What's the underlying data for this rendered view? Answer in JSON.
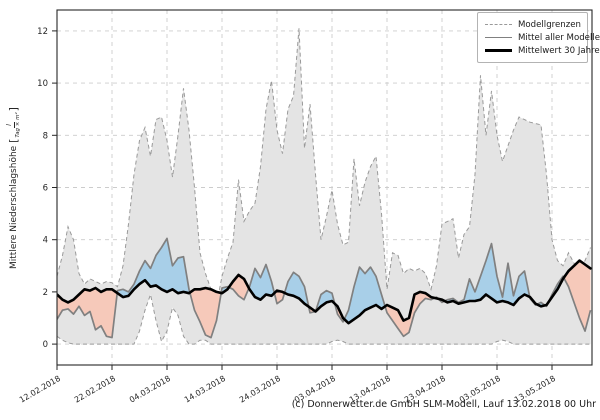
{
  "figure": {
    "caption": "(c) Donnerwetter.de GmbH SLM-Modell, Lauf 13.02.2018 00 Uhr"
  },
  "ylabel": {
    "text": "Mittlere Niederschlagshöhe",
    "bracket_open": "[",
    "bracket_close": "]",
    "unit_numerator": "l",
    "unit_denominator": "Tag × m²"
  },
  "legend": {
    "items": [
      {
        "label": "Modellgrenzen",
        "style": "dashed"
      },
      {
        "label": "Mittel aller Modelle",
        "style": "solid"
      },
      {
        "label": "Mittelwert 30 Jahre",
        "style": "thick"
      }
    ]
  },
  "chart_data": {
    "type": "line",
    "title": "",
    "xlabel": "",
    "ylabel": "Mittlere Niederschlagshöhe [l/(Tag × m²)]",
    "grid": true,
    "legend_position": "top-right",
    "xlim_days": [
      0,
      97.3
    ],
    "ylim": [
      -0.8,
      12.8
    ],
    "y_ticks": [
      0,
      2,
      4,
      6,
      8,
      10,
      12
    ],
    "y_tick_labels": [
      "0",
      "2",
      "4",
      "6",
      "8",
      "10",
      "12"
    ],
    "x_tick_days": [
      0,
      10,
      20,
      30,
      40,
      50,
      60,
      70,
      80,
      90
    ],
    "x_tick_labels": [
      "12.02.2018",
      "22.02.2018",
      "04.03.2018",
      "14.03.2018",
      "24.03.2018",
      "03.04.2018",
      "13.04.2018",
      "23.04.2018",
      "03.05.2018",
      "13.05.2018"
    ],
    "x_tick_rotation_deg": 30,
    "x_sampling": {
      "start_day": 0,
      "step_days": 1,
      "count": 98,
      "start_date": "12.02.2018"
    },
    "colors": {
      "band_fill": "#e4e4e4",
      "band_edge": "#999999",
      "model_mean_line": "#808080",
      "climate_mean_line": "#000000",
      "above_fill": "#a8cfe8",
      "below_fill": "#f6c9ba",
      "grid": "#cccccc",
      "spine": "#262626",
      "tick_text": "#262626"
    },
    "series": [
      {
        "name": "Modellgrenzen (oben)",
        "role": "upper_bound",
        "values": [
          2.6,
          3.4,
          4.5,
          4.0,
          2.7,
          2.3,
          2.5,
          2.4,
          2.3,
          2.4,
          2.35,
          2.2,
          3.0,
          4.6,
          6.5,
          7.8,
          8.3,
          7.2,
          8.6,
          8.7,
          7.8,
          6.4,
          8.0,
          9.8,
          8.2,
          6.0,
          3.5,
          2.7,
          2.1,
          1.5,
          2.6,
          3.3,
          3.9,
          6.3,
          4.7,
          5.1,
          5.4,
          6.8,
          9.0,
          10.1,
          8.2,
          7.3,
          9.0,
          9.5,
          12.1,
          7.5,
          9.2,
          6.5,
          4.0,
          4.9,
          5.9,
          4.6,
          3.8,
          3.9,
          7.1,
          5.3,
          6.2,
          6.8,
          7.2,
          5.0,
          2.1,
          3.5,
          3.4,
          2.7,
          2.9,
          2.8,
          2.9,
          2.7,
          2.1,
          3.0,
          4.6,
          4.7,
          4.8,
          3.3,
          4.2,
          4.5,
          6.5,
          10.3,
          8.0,
          9.7,
          8.0,
          7.0,
          7.6,
          8.2,
          8.7,
          8.6,
          8.5,
          8.45,
          8.4,
          6.5,
          4.0,
          3.2,
          3.0,
          3.5,
          3.1,
          2.8,
          3.2,
          3.7
        ]
      },
      {
        "name": "Modellgrenzen (unten)",
        "role": "lower_bound",
        "values": [
          0.3,
          0.15,
          0.05,
          0,
          0,
          0,
          0,
          0,
          0,
          0,
          0,
          0,
          0,
          0,
          0,
          0.5,
          1.3,
          1.9,
          0.9,
          0.1,
          0.5,
          1.4,
          1.1,
          0.3,
          0,
          0,
          0.15,
          0.15,
          0,
          0,
          0,
          0,
          0,
          0,
          0,
          0,
          0,
          0,
          0,
          0,
          0,
          0,
          0,
          0,
          0,
          0,
          0,
          0,
          0,
          0,
          0.1,
          0.15,
          0.1,
          0,
          0,
          0,
          0,
          0,
          0,
          0,
          0,
          0,
          0,
          0,
          0,
          0,
          0,
          0,
          0,
          0,
          0,
          0,
          0,
          0,
          0,
          0,
          0,
          0,
          0,
          0,
          0.1,
          0.15,
          0.1,
          0,
          0,
          0,
          0,
          0,
          0,
          0,
          0,
          0,
          0,
          0,
          0,
          0,
          0,
          0
        ]
      },
      {
        "name": "Mittel aller Modelle",
        "role": "model_mean",
        "values": [
          0.95,
          1.3,
          1.35,
          1.15,
          1.45,
          1.1,
          1.25,
          0.55,
          0.7,
          0.3,
          0.25,
          2.05,
          2.1,
          2.0,
          2.3,
          2.8,
          3.2,
          2.9,
          3.4,
          3.7,
          4.05,
          3.0,
          3.3,
          3.35,
          2.1,
          1.3,
          0.85,
          0.35,
          0.25,
          0.9,
          2.15,
          2.2,
          2.1,
          1.85,
          1.7,
          2.2,
          2.9,
          2.55,
          3.05,
          2.4,
          1.55,
          1.7,
          2.4,
          2.75,
          2.6,
          2.2,
          1.2,
          1.25,
          1.9,
          2.05,
          1.95,
          1.15,
          0.85,
          1.3,
          2.2,
          2.95,
          2.7,
          2.95,
          2.6,
          1.9,
          1.2,
          0.9,
          0.6,
          0.3,
          0.45,
          1.2,
          1.55,
          1.75,
          1.7,
          1.8,
          1.6,
          1.7,
          1.75,
          1.6,
          1.7,
          2.5,
          2.0,
          2.6,
          3.2,
          3.85,
          2.6,
          1.8,
          3.1,
          1.85,
          2.6,
          2.8,
          1.75,
          1.5,
          1.6,
          1.45,
          1.9,
          2.3,
          2.6,
          2.2,
          1.6,
          1.0,
          0.5,
          1.3
        ]
      },
      {
        "name": "Mittelwert 30 Jahre",
        "role": "climate_mean",
        "values": [
          1.9,
          1.7,
          1.6,
          1.7,
          1.9,
          2.1,
          2.05,
          2.15,
          2.0,
          2.1,
          2.1,
          1.95,
          1.8,
          1.85,
          2.1,
          2.3,
          2.45,
          2.2,
          2.25,
          2.1,
          2.0,
          2.1,
          1.95,
          2.0,
          1.95,
          2.1,
          2.1,
          2.15,
          2.1,
          2.0,
          1.95,
          2.1,
          2.4,
          2.65,
          2.5,
          2.1,
          1.8,
          1.7,
          1.9,
          1.85,
          2.05,
          2.0,
          1.9,
          1.85,
          1.75,
          1.55,
          1.4,
          1.25,
          1.45,
          1.6,
          1.65,
          1.45,
          1.0,
          0.8,
          0.95,
          1.1,
          1.3,
          1.4,
          1.5,
          1.35,
          1.5,
          1.4,
          1.3,
          0.9,
          1.0,
          1.9,
          2.0,
          1.95,
          1.8,
          1.75,
          1.7,
          1.6,
          1.65,
          1.55,
          1.6,
          1.65,
          1.65,
          1.7,
          1.9,
          1.75,
          1.6,
          1.65,
          1.6,
          1.5,
          1.75,
          1.9,
          1.8,
          1.55,
          1.45,
          1.5,
          1.8,
          2.1,
          2.5,
          2.8,
          3.0,
          3.2,
          3.05,
          2.9
        ]
      }
    ]
  }
}
